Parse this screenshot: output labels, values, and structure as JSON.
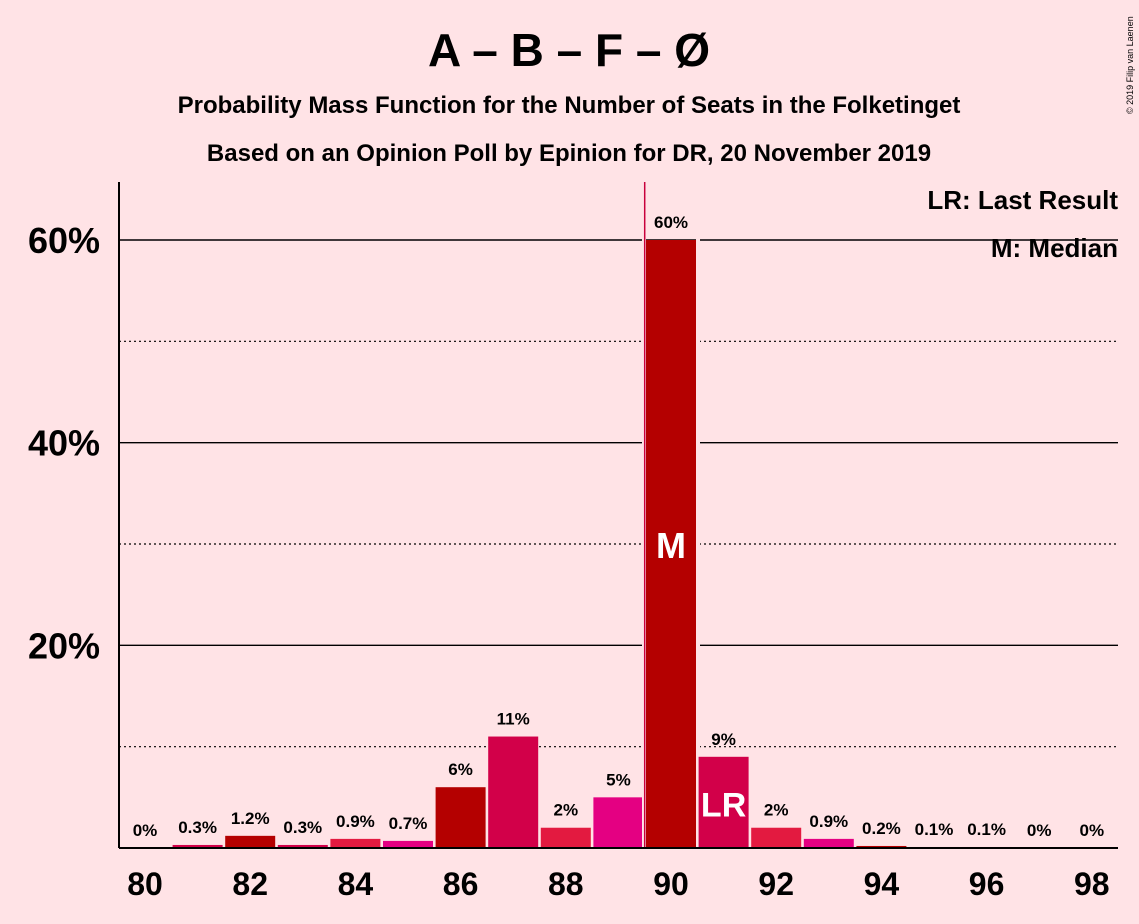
{
  "chart_data": {
    "type": "bar",
    "title": "A – B – F – Ø",
    "subtitle1": "Probability Mass Function for the Number of Seats in the Folketinget",
    "subtitle2": "Based on an Opinion Poll by Epinion for DR, 20 November 2019",
    "categories": [
      80,
      81,
      82,
      83,
      84,
      85,
      86,
      87,
      88,
      89,
      90,
      91,
      92,
      93,
      94,
      95,
      96,
      97,
      98
    ],
    "values": [
      0,
      0.3,
      1.2,
      0.3,
      0.9,
      0.7,
      6,
      11,
      2,
      5,
      60,
      9,
      2,
      0.9,
      0.2,
      0.1,
      0.1,
      0,
      0
    ],
    "value_labels": [
      "0%",
      "0.3%",
      "1.2%",
      "0.3%",
      "0.9%",
      "0.7%",
      "6%",
      "11%",
      "2%",
      "5%",
      "60%",
      "9%",
      "2%",
      "0.9%",
      "0.2%",
      "0.1%",
      "0.1%",
      "0%",
      "0%"
    ],
    "bar_colors": [
      "#B40000",
      "#D20049",
      "#B40000",
      "#D20049",
      "#E31A40",
      "#E40082",
      "#B40000",
      "#D20049",
      "#E31A40",
      "#E40082",
      "#B40000",
      "#D20049",
      "#E31A40",
      "#E40082",
      "#B40000",
      "#D20049",
      "#E31A40",
      "#E40082",
      "#B40000"
    ],
    "ylim": [
      0,
      65
    ],
    "y_ticks": [
      20,
      40,
      60
    ],
    "y_tick_labels": [
      "20%",
      "40%",
      "60%"
    ],
    "y_minor_ticks": [
      10,
      30,
      50
    ],
    "x_tick_labels": [
      "80",
      "82",
      "84",
      "86",
      "88",
      "90",
      "92",
      "94",
      "96",
      "98"
    ],
    "median_seat": 90,
    "median_marker": "M",
    "last_result_seat": 91,
    "last_result_marker": "LR",
    "majority_line_x": 89.5,
    "majority_line_color": "#C8003C",
    "legend": [
      "LR: Last Result",
      "M: Median"
    ],
    "legend_position": "top-right",
    "grid": true
  },
  "copyright": "© 2019 Filip van Laenen"
}
